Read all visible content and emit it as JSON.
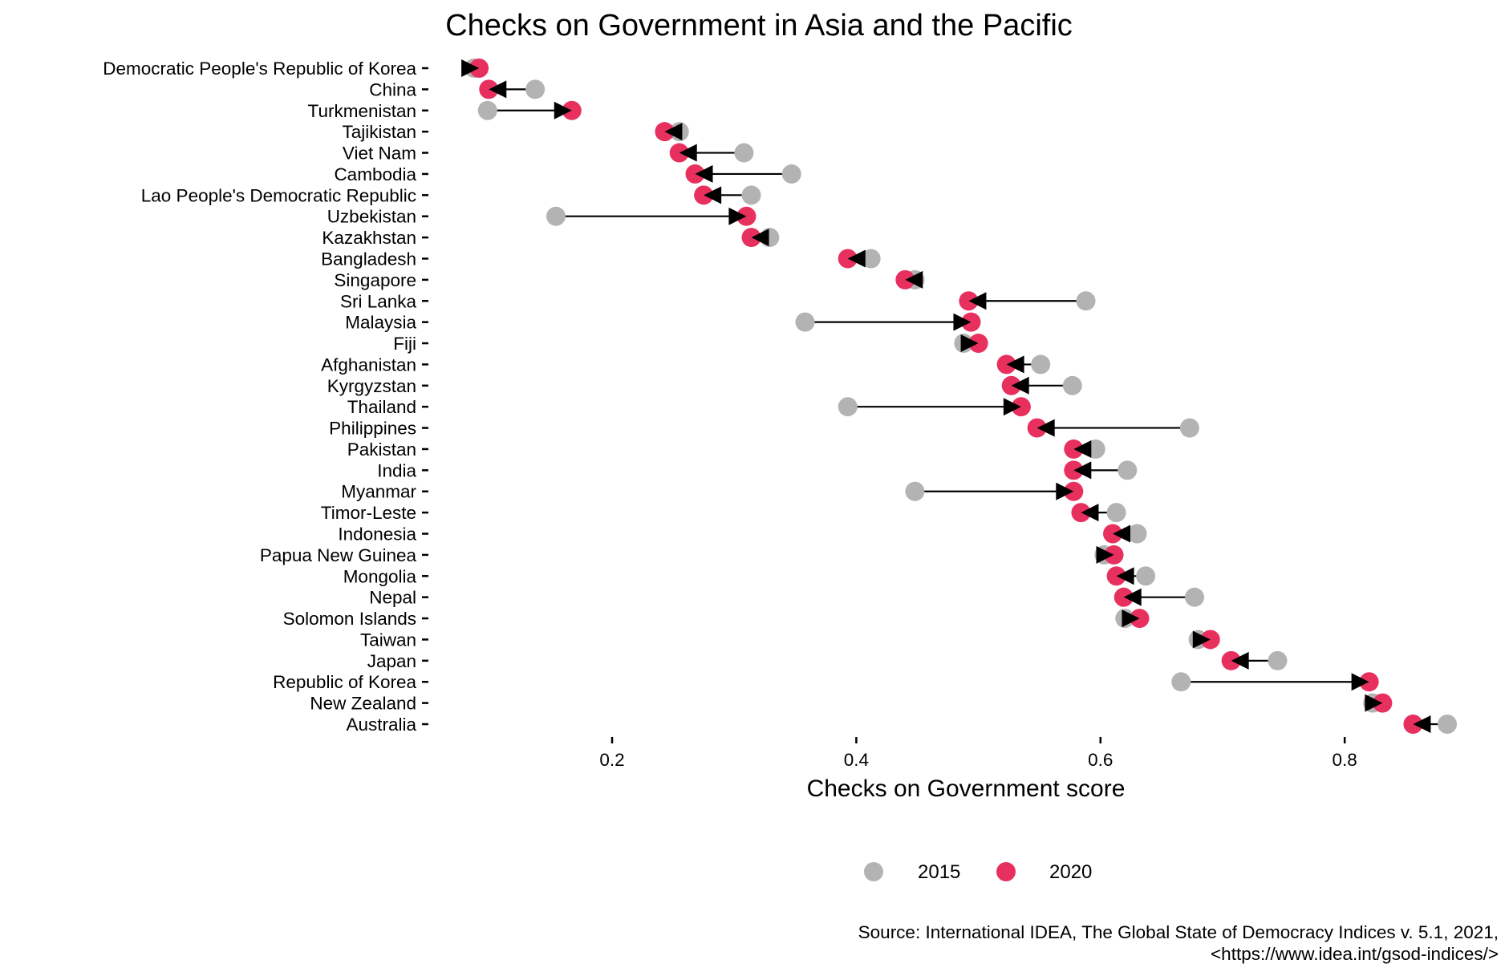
{
  "chart_data": {
    "type": "dumbbell",
    "title": "Checks on Government in Asia and the Pacific",
    "xlabel": "Checks on Government score",
    "ylabel": "",
    "xlim": [
      0.04,
      0.89
    ],
    "xticks": [
      0.2,
      0.4,
      0.6,
      0.8
    ],
    "xtick_labels": [
      "0.2",
      "0.4",
      "0.6",
      "0.8"
    ],
    "grid": false,
    "legend": {
      "position": "bottom",
      "entries": [
        {
          "label": "2015",
          "color": "#B3B3B3"
        },
        {
          "label": "2020",
          "color": "#E8305F"
        }
      ]
    },
    "series_names": [
      "2015",
      "2020"
    ],
    "categories": [
      "Democratic People's Republic of Korea",
      "China",
      "Turkmenistan",
      "Tajikistan",
      "Viet Nam",
      "Cambodia",
      "Lao People's Democratic Republic",
      "Uzbekistan",
      "Kazakhstan",
      "Bangladesh",
      "Singapore",
      "Sri Lanka",
      "Malaysia",
      "Fiji",
      "Afghanistan",
      "Kyrgyzstan",
      "Thailand",
      "Philippines",
      "Pakistan",
      "India",
      "Myanmar",
      "Timor-Leste",
      "Indonesia",
      "Papua New Guinea",
      "Mongolia",
      "Nepal",
      "Solomon Islands",
      "Taiwan",
      "Japan",
      "Republic of Korea",
      "New Zealand",
      "Australia"
    ],
    "series": [
      {
        "name": "2015",
        "values": [
          0.087,
          0.137,
          0.098,
          0.255,
          0.308,
          0.347,
          0.314,
          0.154,
          0.329,
          0.412,
          0.448,
          0.588,
          0.358,
          0.488,
          0.551,
          0.577,
          0.393,
          0.673,
          0.596,
          0.622,
          0.448,
          0.613,
          0.63,
          0.603,
          0.637,
          0.677,
          0.62,
          0.68,
          0.745,
          0.666,
          0.823,
          0.884
        ]
      },
      {
        "name": "2020",
        "values": [
          0.091,
          0.099,
          0.167,
          0.243,
          0.255,
          0.268,
          0.275,
          0.31,
          0.314,
          0.393,
          0.44,
          0.492,
          0.494,
          0.5,
          0.523,
          0.527,
          0.535,
          0.548,
          0.578,
          0.578,
          0.578,
          0.584,
          0.61,
          0.611,
          0.613,
          0.619,
          0.632,
          0.69,
          0.707,
          0.82,
          0.831,
          0.856
        ]
      }
    ],
    "source": [
      "Source: International IDEA, The Global State of Democracy Indices v. 5.1, 2021,",
      "<https://www.idea.int/gsod-indices/>"
    ]
  }
}
